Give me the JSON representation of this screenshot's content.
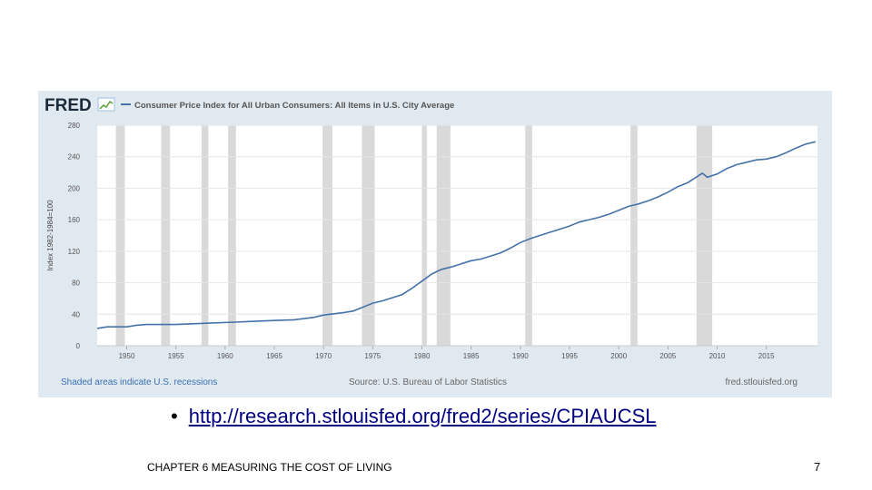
{
  "slide": {
    "link_text": "http://research.stlouisfed.org/fred2/series/CPIAUCSL",
    "bullet": "•",
    "footer": "CHAPTER 6 MEASURING THE COST OF LIVING",
    "page_number": "7"
  },
  "chart_header": {
    "logo_text": "FRED",
    "legend_label": "Consumer Price Index for All Urban Consumers: All Items in U.S. City Average"
  },
  "chart_footer": {
    "recession_note": "Shaded areas indicate U.S. recessions",
    "source": "Source: U.S. Bureau of Labor Statistics",
    "site": "fred.stlouisfed.org"
  },
  "colors": {
    "panel_bg": "#e1e9f0",
    "plot_bg": "#ffffff",
    "line": "#4572a7",
    "recession": "#d9d9d9",
    "link": "#000080",
    "note": "#3a6fb0"
  },
  "chart_data": {
    "type": "line",
    "title": "Consumer Price Index for All Urban Consumers: All Items in U.S. City Average",
    "ylabel": "Index 1982-1984=100",
    "xlabel": "",
    "xlim": [
      1947,
      2020.2
    ],
    "ylim": [
      0,
      280
    ],
    "x_ticks": [
      1950,
      1955,
      1960,
      1965,
      1970,
      1975,
      1980,
      1985,
      1990,
      1995,
      2000,
      2005,
      2010,
      2015
    ],
    "y_ticks": [
      0,
      40,
      80,
      120,
      160,
      200,
      240,
      280
    ],
    "grid": true,
    "recessions": [
      [
        1948.9,
        1949.8
      ],
      [
        1953.5,
        1954.4
      ],
      [
        1957.6,
        1958.3
      ],
      [
        1960.3,
        1961.1
      ],
      [
        1969.9,
        1970.9
      ],
      [
        1973.9,
        1975.2
      ],
      [
        1980.0,
        1980.5
      ],
      [
        1981.5,
        1982.9
      ],
      [
        1990.5,
        1991.2
      ],
      [
        2001.2,
        2001.9
      ],
      [
        2007.9,
        2009.5
      ]
    ],
    "series": [
      {
        "name": "Consumer Price Index for All Urban Consumers: All Items in U.S. City Average",
        "x": [
          1947,
          1948,
          1949,
          1950,
          1951,
          1952,
          1953,
          1955,
          1957,
          1959,
          1961,
          1963,
          1965,
          1967,
          1969,
          1970,
          1972,
          1973,
          1974,
          1975,
          1976,
          1977,
          1978,
          1979,
          1980,
          1981,
          1982,
          1983,
          1984,
          1985,
          1986,
          1987,
          1988,
          1989,
          1990,
          1991,
          1992,
          1993,
          1994,
          1995,
          1996,
          1997,
          1998,
          1999,
          2000,
          2001,
          2002,
          2003,
          2004,
          2005,
          2006,
          2007,
          2008.5,
          2009,
          2010,
          2011,
          2012,
          2013,
          2014,
          2015,
          2016,
          2017,
          2018,
          2019,
          2020
        ],
        "y": [
          22,
          24,
          24,
          24,
          26,
          27,
          27,
          27,
          28,
          29,
          30,
          31,
          32,
          33,
          36,
          39,
          42,
          44,
          49,
          54,
          57,
          61,
          65,
          73,
          82,
          91,
          97,
          100,
          104,
          108,
          110,
          114,
          118,
          124,
          131,
          136,
          140,
          144,
          148,
          152,
          157,
          160,
          163,
          167,
          172,
          177,
          180,
          184,
          189,
          195,
          202,
          207,
          219,
          214,
          218,
          225,
          230,
          233,
          236,
          237,
          240,
          245,
          251,
          256,
          259
        ]
      }
    ]
  }
}
